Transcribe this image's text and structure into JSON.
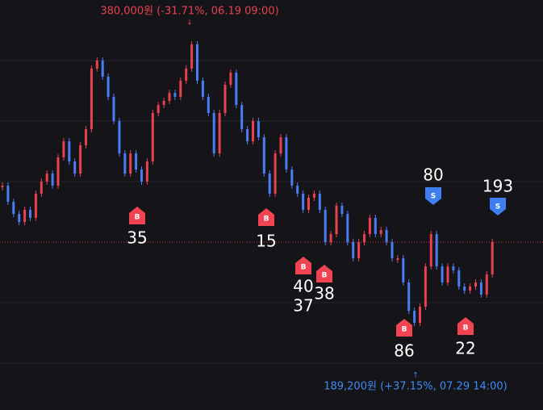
{
  "chart_data": {
    "type": "candlestick",
    "values": [
      292400,
      282900,
      275800,
      271100,
      278200,
      273500,
      287700,
      294800,
      299500,
      292400,
      309000,
      318400,
      306600,
      299500,
      316100,
      325500,
      361100,
      365800,
      356300,
      344500,
      330300,
      311300,
      299500,
      311300,
      301900,
      294800,
      306600,
      335000,
      339700,
      342100,
      346800,
      344500,
      354000,
      361100,
      375300,
      354000,
      344500,
      335000,
      311300,
      335000,
      351600,
      358700,
      339700,
      325500,
      318400,
      330300,
      320800,
      299500,
      287700,
      311300,
      320800,
      301900,
      292400,
      287700,
      278200,
      285300,
      287700,
      278200,
      259300,
      264000,
      280600,
      275800,
      259300,
      249800,
      259300,
      264000,
      273500,
      264000,
      266400,
      259300,
      249800,
      249800,
      235600,
      219000,
      211900,
      221400,
      245000,
      264000,
      245000,
      235600,
      245000,
      242700,
      233200,
      230800,
      233200,
      235600,
      228500,
      240300,
      259300
    ],
    "ylim": [
      401300,
      160800
    ],
    "up_color": "#e8414f",
    "down_color": "#4a7cf3",
    "annotations": [
      {
        "text": "380,000원 (-31.71%, 06.19 09:00)",
        "color": "#e8414f"
      },
      {
        "text": "189,200원 (+37.15%, 07.29 14:00)",
        "color": "#3d8bf5"
      }
    ],
    "markers": [
      {
        "kind": "B",
        "labels": [
          "35"
        ]
      },
      {
        "kind": "B",
        "labels": [
          "15"
        ]
      },
      {
        "kind": "B",
        "labels": [
          "40",
          "37"
        ]
      },
      {
        "kind": "B",
        "labels": [
          "38"
        ]
      },
      {
        "kind": "B",
        "labels": [
          "86"
        ]
      },
      {
        "kind": "B",
        "labels": [
          "22"
        ]
      },
      {
        "kind": "S",
        "labels": [
          "80"
        ]
      },
      {
        "kind": "S",
        "labels": [
          "193"
        ]
      }
    ]
  }
}
